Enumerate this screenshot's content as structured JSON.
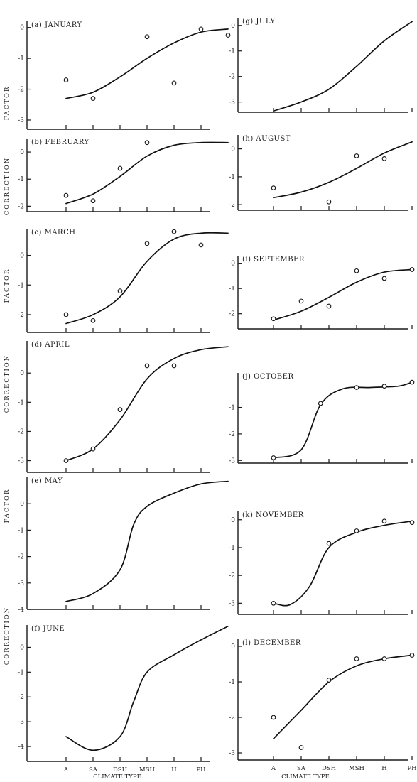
{
  "figure": {
    "ylabels": [
      "FACTOR",
      "CORRECTION",
      "FACTOR",
      "CORRECTION",
      "FACTOR",
      "CORRECTION"
    ],
    "xlabel_left": "CLIMATE TYPE",
    "xlabel_right": "CLIMATE TYPE",
    "xtick_labels": [
      "A",
      "SA",
      "DSH",
      "MSH",
      "H",
      "PH"
    ]
  },
  "chart_data": [
    {
      "type": "scatter",
      "title": "(a) JANUARY",
      "categories": [
        "A",
        "SA",
        "DSH",
        "MSH",
        "H",
        "PH"
      ],
      "ylim": [
        -3.3,
        0.2
      ],
      "yticks": [
        0,
        -1,
        -2,
        -3
      ],
      "points": [
        [
          0,
          -1.7
        ],
        [
          1,
          -2.3
        ],
        [
          3,
          -0.3
        ],
        [
          4,
          -1.8
        ],
        [
          5,
          -0.05
        ],
        [
          6,
          -0.25
        ]
      ],
      "curve": [
        [
          0,
          -2.3
        ],
        [
          1,
          -2.1
        ],
        [
          2,
          -1.6
        ],
        [
          3,
          -1.0
        ],
        [
          4,
          -0.5
        ],
        [
          5,
          -0.15
        ],
        [
          6,
          -0.05
        ]
      ]
    },
    {
      "type": "scatter",
      "title": "(b) FEBRUARY",
      "categories": [
        "A",
        "SA",
        "DSH",
        "MSH",
        "H",
        "PH"
      ],
      "ylim": [
        -2.2,
        0.5
      ],
      "yticks": [
        0,
        -1,
        -2
      ],
      "points": [
        [
          0,
          -1.6
        ],
        [
          1,
          -1.8
        ],
        [
          2,
          -0.6
        ],
        [
          3,
          0.35
        ]
      ],
      "curve": [
        [
          0,
          -1.9
        ],
        [
          1,
          -1.55
        ],
        [
          2,
          -0.9
        ],
        [
          3,
          -0.15
        ],
        [
          4,
          0.25
        ],
        [
          5,
          0.35
        ],
        [
          6,
          0.35
        ]
      ]
    },
    {
      "type": "scatter",
      "title": "(c) MARCH",
      "categories": [
        "A",
        "SA",
        "DSH",
        "MSH",
        "H",
        "PH"
      ],
      "ylim": [
        -2.6,
        0.9
      ],
      "yticks": [
        0,
        -1,
        -2
      ],
      "points": [
        [
          0,
          -2.0
        ],
        [
          1,
          -2.2
        ],
        [
          2,
          -1.2
        ],
        [
          3,
          0.4
        ],
        [
          4,
          0.8
        ],
        [
          5,
          0.35
        ]
      ],
      "curve": [
        [
          0,
          -2.3
        ],
        [
          1,
          -2.0
        ],
        [
          2,
          -1.4
        ],
        [
          3,
          -0.2
        ],
        [
          4,
          0.55
        ],
        [
          5,
          0.75
        ],
        [
          6,
          0.75
        ]
      ]
    },
    {
      "type": "scatter",
      "title": "(d) APRIL",
      "categories": [
        "A",
        "SA",
        "DSH",
        "MSH",
        "H",
        "PH"
      ],
      "ylim": [
        -3.4,
        1.1
      ],
      "yticks": [
        0,
        -1,
        -2,
        -3
      ],
      "points": [
        [
          0,
          -3.0
        ],
        [
          1,
          -2.6
        ],
        [
          2,
          -1.25
        ],
        [
          3,
          0.25
        ],
        [
          4,
          0.25
        ]
      ],
      "curve": [
        [
          0,
          -3.0
        ],
        [
          1,
          -2.6
        ],
        [
          2,
          -1.6
        ],
        [
          3,
          -0.2
        ],
        [
          4,
          0.5
        ],
        [
          5,
          0.8
        ],
        [
          6,
          0.9
        ]
      ]
    },
    {
      "type": "line",
      "title": "(e) MAY",
      "categories": [
        "A",
        "SA",
        "DSH",
        "MSH",
        "H",
        "PH"
      ],
      "ylim": [
        -4.0,
        1.0
      ],
      "yticks": [
        0,
        -1,
        -2,
        -3,
        -4
      ],
      "curve": [
        [
          0,
          -3.7
        ],
        [
          1,
          -3.4
        ],
        [
          2,
          -2.5
        ],
        [
          2.5,
          -0.8
        ],
        [
          3,
          -0.1
        ],
        [
          4,
          0.4
        ],
        [
          5,
          0.75
        ],
        [
          6,
          0.85
        ]
      ]
    },
    {
      "type": "line",
      "title": "(f) JUNE",
      "categories": [
        "A",
        "SA",
        "DSH",
        "MSH",
        "H",
        "PH"
      ],
      "ylim": [
        -4.6,
        0.9
      ],
      "yticks": [
        0,
        -1,
        -2,
        -3,
        -4
      ],
      "curve": [
        [
          0,
          -3.6
        ],
        [
          1,
          -4.15
        ],
        [
          2,
          -3.6
        ],
        [
          2.5,
          -2.2
        ],
        [
          3,
          -1.0
        ],
        [
          4,
          -0.3
        ],
        [
          5,
          0.3
        ],
        [
          6,
          0.85
        ]
      ]
    },
    {
      "type": "line",
      "title": "(g) JULY",
      "categories": [
        "A",
        "SA",
        "DSH",
        "MSH",
        "H",
        "PH"
      ],
      "ylim": [
        -3.4,
        0.3
      ],
      "yticks": [
        0,
        -1,
        -2,
        -3
      ],
      "curve": [
        [
          0,
          -3.35
        ],
        [
          1,
          -3.0
        ],
        [
          2,
          -2.5
        ],
        [
          3,
          -1.6
        ],
        [
          4,
          -0.6
        ],
        [
          5,
          0.15
        ]
      ]
    },
    {
      "type": "scatter",
      "title": "(h) AUGUST",
      "categories": [
        "A",
        "SA",
        "DSH",
        "MSH",
        "H",
        "PH"
      ],
      "ylim": [
        -2.2,
        0.5
      ],
      "yticks": [
        0,
        -1,
        -2
      ],
      "points": [
        [
          0,
          -1.4
        ],
        [
          2,
          -1.9
        ],
        [
          3,
          -0.25
        ],
        [
          4,
          -0.35
        ]
      ],
      "curve": [
        [
          0,
          -1.75
        ],
        [
          1,
          -1.55
        ],
        [
          2,
          -1.2
        ],
        [
          3,
          -0.7
        ],
        [
          4,
          -0.15
        ],
        [
          5,
          0.25
        ]
      ]
    },
    {
      "type": "scatter",
      "title": "(i) SEPTEMBER",
      "categories": [
        "A",
        "SA",
        "DSH",
        "MSH",
        "H",
        "PH"
      ],
      "ylim": [
        -2.6,
        0.3
      ],
      "yticks": [
        0,
        -1,
        -2
      ],
      "points": [
        [
          0,
          -2.2
        ],
        [
          1,
          -1.5
        ],
        [
          2,
          -1.7
        ],
        [
          3,
          -0.3
        ],
        [
          4,
          -0.6
        ],
        [
          5,
          -0.25
        ]
      ],
      "curve": [
        [
          0,
          -2.25
        ],
        [
          1,
          -1.9
        ],
        [
          2,
          -1.35
        ],
        [
          3,
          -0.75
        ],
        [
          4,
          -0.35
        ],
        [
          5,
          -0.25
        ]
      ]
    },
    {
      "type": "scatter",
      "title": "(j) OCTOBER",
      "categories": [
        "A",
        "SA",
        "DSH",
        "MSH",
        "H",
        "PH"
      ],
      "ylim": [
        -3.1,
        0.3
      ],
      "yticks": [
        -1,
        -2,
        -3
      ],
      "points": [
        [
          0,
          -2.9
        ],
        [
          1.7,
          -0.85
        ],
        [
          3,
          -0.25
        ],
        [
          4,
          -0.2
        ],
        [
          5,
          -0.05
        ]
      ],
      "curve": [
        [
          0,
          -2.9
        ],
        [
          1,
          -2.6
        ],
        [
          1.7,
          -0.9
        ],
        [
          2.5,
          -0.3
        ],
        [
          3.5,
          -0.25
        ],
        [
          4.5,
          -0.2
        ],
        [
          5,
          -0.05
        ]
      ]
    },
    {
      "type": "scatter",
      "title": "(k) NOVEMBER",
      "categories": [
        "A",
        "SA",
        "DSH",
        "MSH",
        "H",
        "PH"
      ],
      "ylim": [
        -3.4,
        0.3
      ],
      "yticks": [
        0,
        -1,
        -2,
        -3
      ],
      "points": [
        [
          0,
          -3.0
        ],
        [
          2,
          -0.85
        ],
        [
          3,
          -0.4
        ],
        [
          4,
          -0.05
        ],
        [
          5,
          -0.1
        ]
      ],
      "curve": [
        [
          0,
          -3.0
        ],
        [
          0.6,
          -3.05
        ],
        [
          1.3,
          -2.4
        ],
        [
          2,
          -1.0
        ],
        [
          3,
          -0.45
        ],
        [
          4,
          -0.2
        ],
        [
          5,
          -0.05
        ]
      ]
    },
    {
      "type": "scatter",
      "title": "(l) DECEMBER",
      "categories": [
        "A",
        "SA",
        "DSH",
        "MSH",
        "H",
        "PH"
      ],
      "ylim": [
        -3.2,
        0.2
      ],
      "yticks": [
        0,
        -1,
        -2,
        -3
      ],
      "points": [
        [
          0,
          -2.0
        ],
        [
          1,
          -2.85
        ],
        [
          2,
          -0.95
        ],
        [
          3,
          -0.35
        ],
        [
          4,
          -0.35
        ],
        [
          5,
          -0.25
        ]
      ],
      "curve": [
        [
          0,
          -2.6
        ],
        [
          1,
          -1.8
        ],
        [
          2,
          -1.0
        ],
        [
          3,
          -0.55
        ],
        [
          4,
          -0.35
        ],
        [
          5,
          -0.25
        ]
      ]
    }
  ]
}
